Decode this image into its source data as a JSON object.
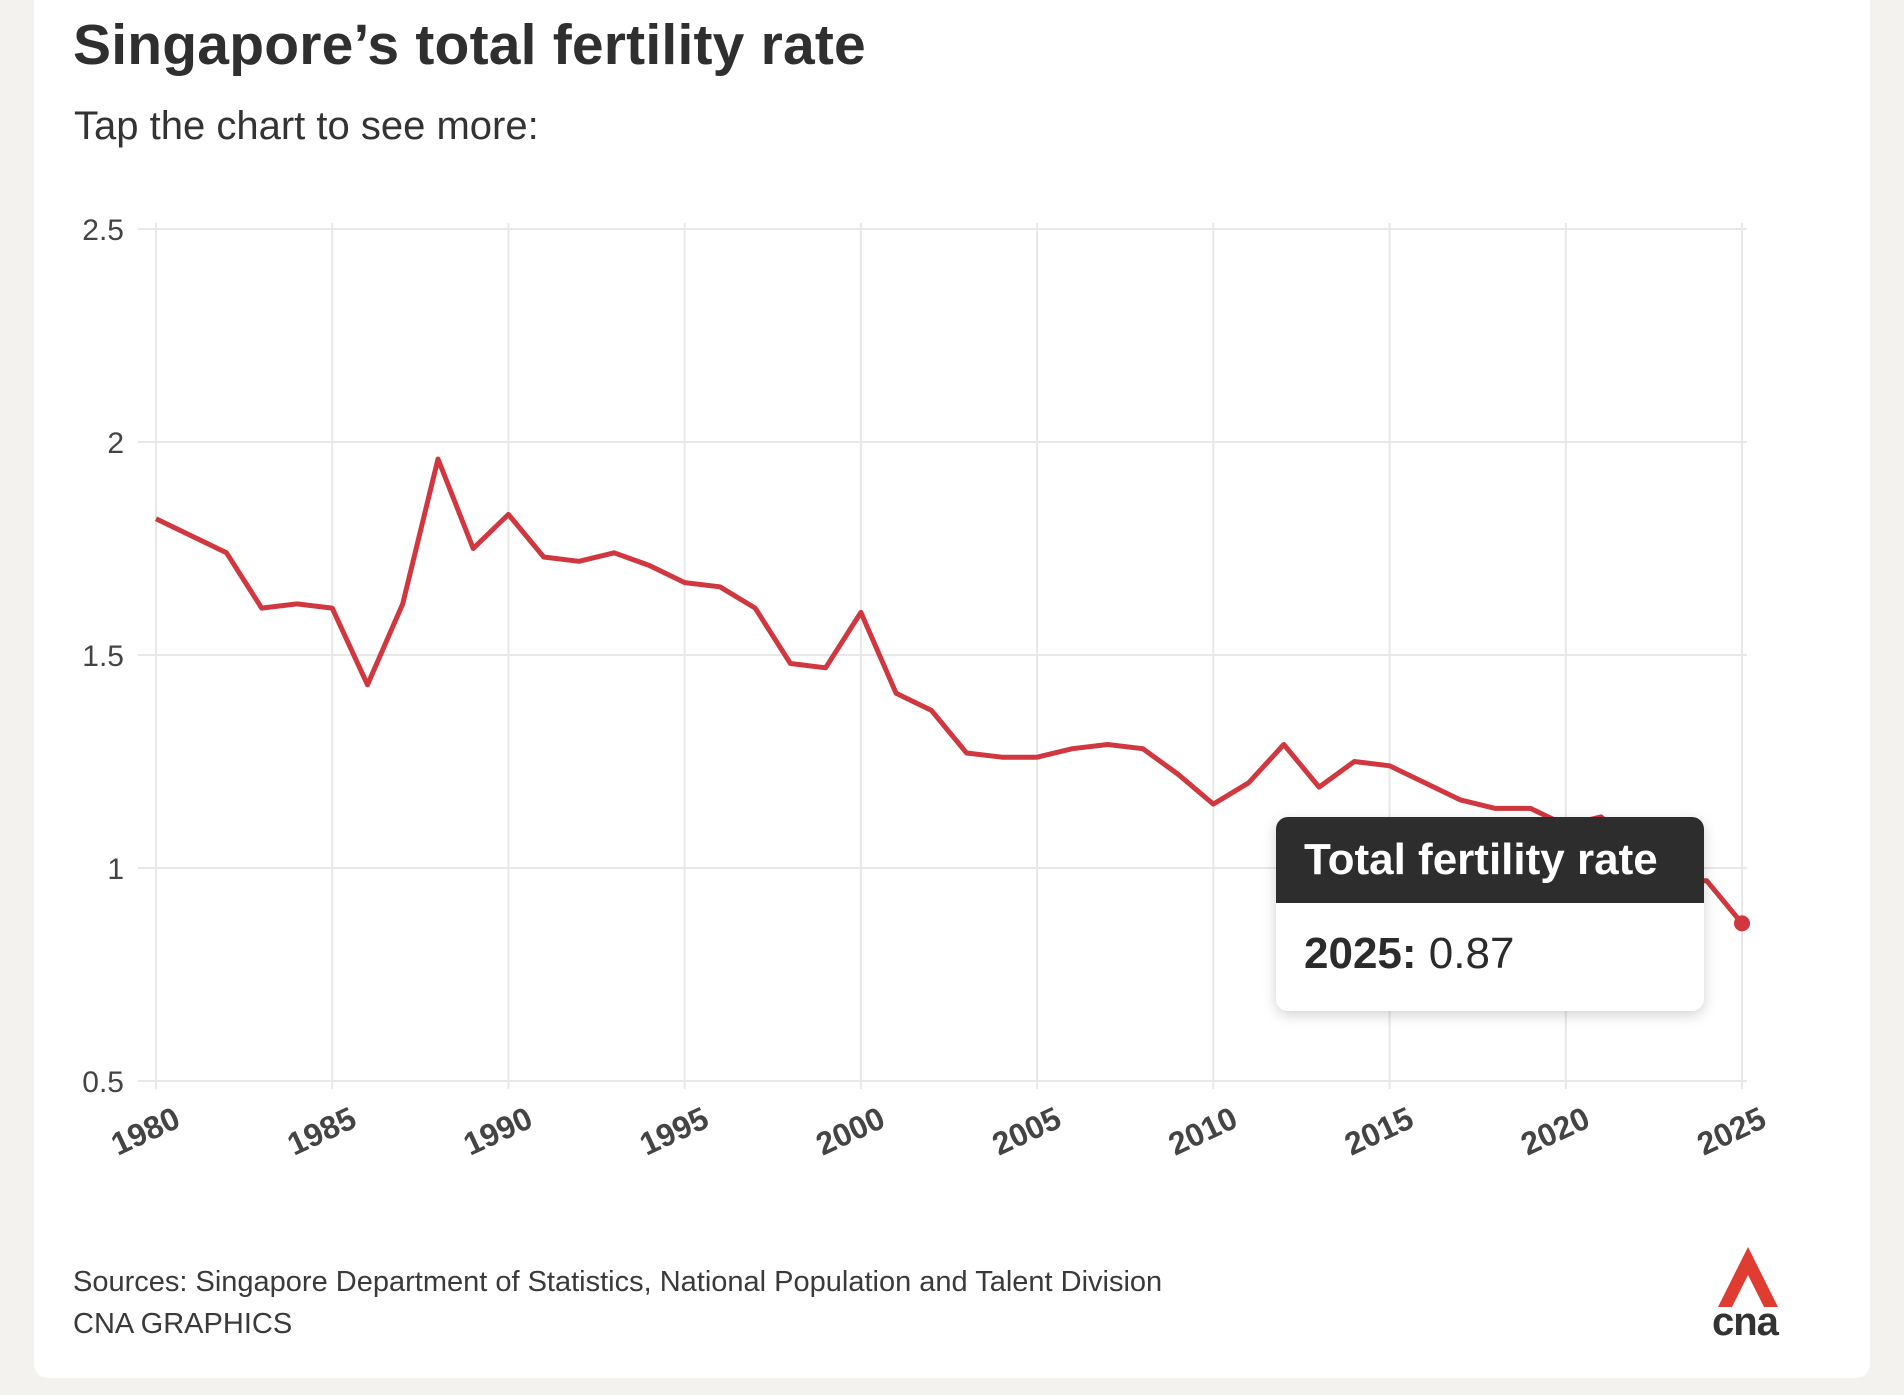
{
  "header": {
    "title": "Singapore’s total fertility rate",
    "subtitle": "Tap the chart to see more:"
  },
  "tooltip": {
    "series": "Total fertility rate",
    "year_label": "2025:",
    "value_label": "0.87"
  },
  "footer": {
    "sources": "Sources: Singapore Department of Statistics, National Population and Talent Division",
    "credit": "CNA GRAPHICS"
  },
  "logo": {
    "text": "cna",
    "color": "#e03c31"
  },
  "colors": {
    "line": "#d0373f",
    "grid": "#e8e8e8",
    "tooltip_header": "#2d2d2d"
  },
  "chart_data": {
    "type": "line",
    "title": "Singapore’s total fertility rate",
    "xlabel": "",
    "ylabel": "",
    "xlim": [
      1980,
      2025
    ],
    "ylim": [
      0.5,
      2.5
    ],
    "x_ticks": [
      "1980",
      "1985",
      "1990",
      "1995",
      "2000",
      "2005",
      "2010",
      "2015",
      "2020",
      "2025"
    ],
    "y_ticks": [
      "0.5",
      "1",
      "1.5",
      "2",
      "2.5"
    ],
    "grid": true,
    "series": [
      {
        "name": "Total fertility rate",
        "x": [
          1980,
          1981,
          1982,
          1983,
          1984,
          1985,
          1986,
          1987,
          1988,
          1989,
          1990,
          1991,
          1992,
          1993,
          1994,
          1995,
          1996,
          1997,
          1998,
          1999,
          2000,
          2001,
          2002,
          2003,
          2004,
          2005,
          2006,
          2007,
          2008,
          2009,
          2010,
          2011,
          2012,
          2013,
          2014,
          2015,
          2016,
          2017,
          2018,
          2019,
          2020,
          2021,
          2022,
          2023,
          2024,
          2025
        ],
        "y": [
          1.82,
          1.78,
          1.74,
          1.61,
          1.62,
          1.61,
          1.43,
          1.62,
          1.96,
          1.75,
          1.83,
          1.73,
          1.72,
          1.74,
          1.71,
          1.67,
          1.66,
          1.61,
          1.48,
          1.47,
          1.6,
          1.41,
          1.37,
          1.27,
          1.26,
          1.26,
          1.28,
          1.29,
          1.28,
          1.22,
          1.15,
          1.2,
          1.29,
          1.19,
          1.25,
          1.24,
          1.2,
          1.16,
          1.14,
          1.14,
          1.1,
          1.12,
          1.05,
          0.97,
          0.97,
          0.87
        ]
      }
    ],
    "highlight": {
      "x": 2025,
      "y": 0.87
    }
  }
}
